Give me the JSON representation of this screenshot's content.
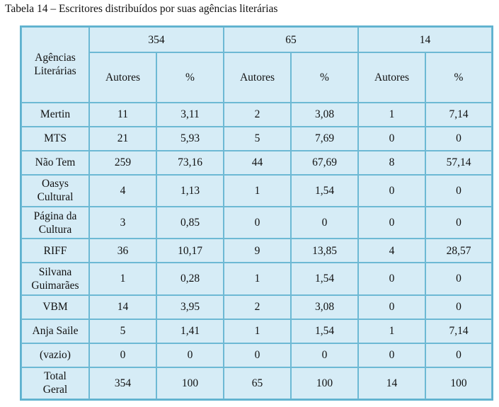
{
  "caption": "Tabela 14 – Escritores distribuídos por suas agências literárias",
  "header": {
    "row_label_line1": "Agências",
    "row_label_line2": "Literárias",
    "groups": [
      "354",
      "65",
      "14"
    ],
    "col_autores": "Autores",
    "col_pct": "%"
  },
  "rows": [
    {
      "label1": "Mertin",
      "label2": "",
      "values": [
        "11",
        "3,11",
        "2",
        "3,08",
        "1",
        "7,14"
      ]
    },
    {
      "label1": "MTS",
      "label2": "",
      "values": [
        "21",
        "5,93",
        "5",
        "7,69",
        "0",
        "0"
      ]
    },
    {
      "label1": "Não Tem",
      "label2": "",
      "values": [
        "259",
        "73,16",
        "44",
        "67,69",
        "8",
        "57,14"
      ]
    },
    {
      "label1": "Oasys",
      "label2": "Cultural",
      "values": [
        "4",
        "1,13",
        "1",
        "1,54",
        "0",
        "0"
      ]
    },
    {
      "label1": "Página da",
      "label2": "Cultura",
      "values": [
        "3",
        "0,85",
        "0",
        "0",
        "0",
        "0"
      ]
    },
    {
      "label1": "RIFF",
      "label2": "",
      "values": [
        "36",
        "10,17",
        "9",
        "13,85",
        "4",
        "28,57"
      ]
    },
    {
      "label1": "Silvana",
      "label2": "Guimarães",
      "values": [
        "1",
        "0,28",
        "1",
        "1,54",
        "0",
        "0"
      ]
    },
    {
      "label1": "VBM",
      "label2": "",
      "values": [
        "14",
        "3,95",
        "2",
        "3,08",
        "0",
        "0"
      ]
    },
    {
      "label1": "Anja Saile",
      "label2": "",
      "values": [
        "5",
        "1,41",
        "1",
        "1,54",
        "1",
        "7,14"
      ]
    },
    {
      "label1": "(vazio)",
      "label2": "",
      "values": [
        "0",
        "0",
        "0",
        "0",
        "0",
        "0"
      ]
    },
    {
      "label1": "Total",
      "label2": "Geral",
      "values": [
        "354",
        "100",
        "65",
        "100",
        "14",
        "100"
      ]
    }
  ]
}
